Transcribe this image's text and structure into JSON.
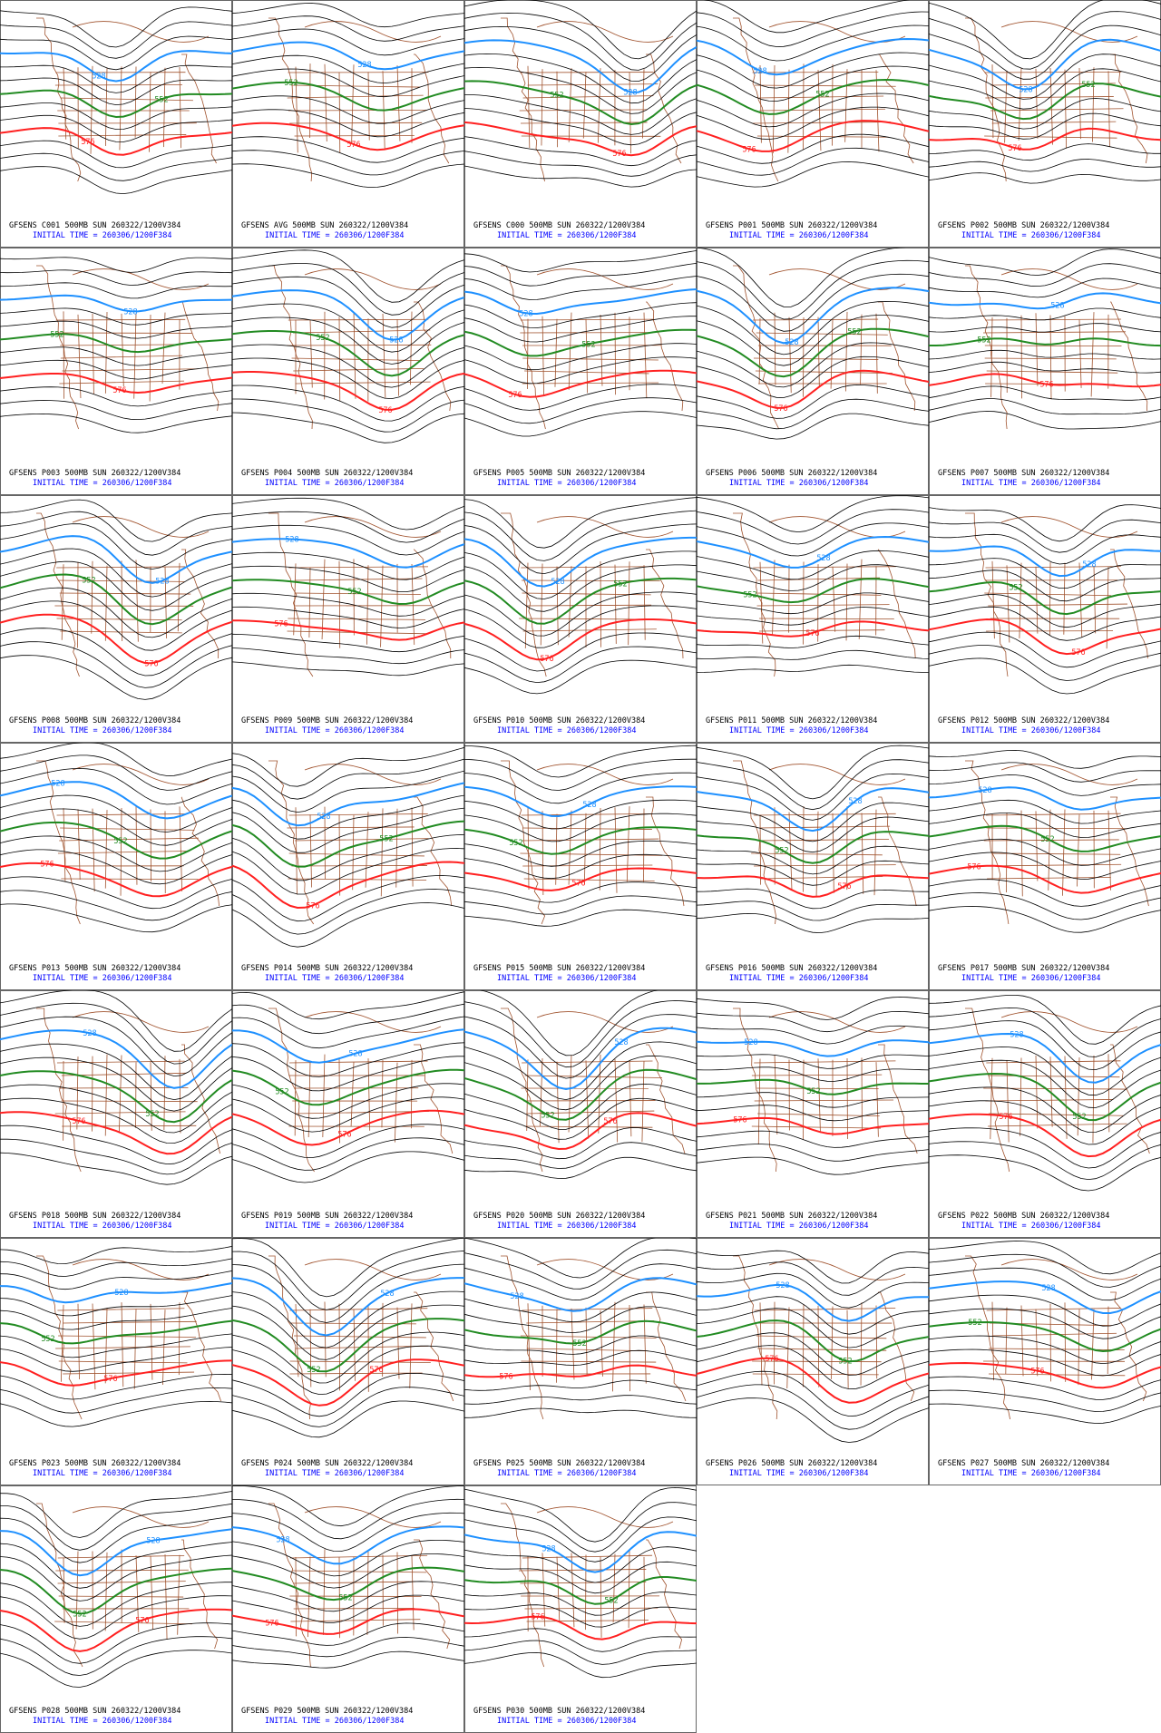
{
  "panels": [
    {
      "title": "GFSENS C001 500MB SUN 260322/1200V384",
      "initial": "INITIAL TIME = 260306/1200F384",
      "contour_labels": [
        "528",
        "552",
        "576"
      ]
    },
    {
      "title": "GFSENS AVG 500MB SUN 260322/1200V384",
      "initial": "INITIAL TIME = 260306/1200F384",
      "contour_labels": [
        "528",
        "552",
        "576"
      ]
    },
    {
      "title": "GFSENS C000 500MB SUN 260322/1200V384",
      "initial": "INITIAL TIME = 260306/1200F384",
      "contour_labels": [
        "528",
        "552",
        "576"
      ]
    },
    {
      "title": "GFSENS P001 500MB SUN 260322/1200V384",
      "initial": "INITIAL TIME = 260306/1200F384",
      "contour_labels": [
        "528",
        "552",
        "576"
      ]
    },
    {
      "title": "GFSENS P002 500MB SUN 260322/1200V384",
      "initial": "INITIAL TIME = 260306/1200F384",
      "contour_labels": [
        "528",
        "552",
        "576"
      ]
    },
    {
      "title": "GFSENS P003 500MB SUN 260322/1200V384",
      "initial": "INITIAL TIME = 260306/1200F384",
      "contour_labels": [
        "528",
        "552",
        "576"
      ]
    },
    {
      "title": "GFSENS P004 500MB SUN 260322/1200V384",
      "initial": "INITIAL TIME = 260306/1200F384",
      "contour_labels": [
        "528",
        "552",
        "576"
      ]
    },
    {
      "title": "GFSENS P005 500MB SUN 260322/1200V384",
      "initial": "INITIAL TIME = 260306/1200F384",
      "contour_labels": [
        "528",
        "552",
        "576"
      ]
    },
    {
      "title": "GFSENS P006 500MB SUN 260322/1200V384",
      "initial": "INITIAL TIME = 260306/1200F384",
      "contour_labels": [
        "528",
        "552",
        "576"
      ]
    },
    {
      "title": "GFSENS P007 500MB SUN 260322/1200V384",
      "initial": "INITIAL TIME = 260306/1200F384",
      "contour_labels": [
        "528",
        "552",
        "576"
      ]
    },
    {
      "title": "GFSENS P008 500MB SUN 260322/1200V384",
      "initial": "INITIAL TIME = 260306/1200F384",
      "contour_labels": [
        "528",
        "552",
        "576"
      ]
    },
    {
      "title": "GFSENS P009 500MB SUN 260322/1200V384",
      "initial": "INITIAL TIME = 260306/1200F384",
      "contour_labels": [
        "528",
        "552",
        "576"
      ]
    },
    {
      "title": "GFSENS P010 500MB SUN 260322/1200V384",
      "initial": "INITIAL TIME = 260306/1200F384",
      "contour_labels": [
        "528",
        "552",
        "576"
      ]
    },
    {
      "title": "GFSENS P011 500MB SUN 260322/1200V384",
      "initial": "INITIAL TIME = 260306/1200F384",
      "contour_labels": [
        "528",
        "552",
        "576"
      ]
    },
    {
      "title": "GFSENS P012 500MB SUN 260322/1200V384",
      "initial": "INITIAL TIME = 260306/1200F384",
      "contour_labels": [
        "528",
        "552",
        "576"
      ]
    },
    {
      "title": "GFSENS P013 500MB SUN 260322/1200V384",
      "initial": "INITIAL TIME = 260306/1200F384",
      "contour_labels": [
        "528",
        "552",
        "576"
      ]
    },
    {
      "title": "GFSENS P014 500MB SUN 260322/1200V384",
      "initial": "INITIAL TIME = 260306/1200F384",
      "contour_labels": [
        "528",
        "552",
        "576"
      ]
    },
    {
      "title": "GFSENS P015 500MB SUN 260322/1200V384",
      "initial": "INITIAL TIME = 260306/1200F384",
      "contour_labels": [
        "528",
        "552",
        "576"
      ]
    },
    {
      "title": "GFSENS P016 500MB SUN 260322/1200V384",
      "initial": "INITIAL TIME = 260306/1200F384",
      "contour_labels": [
        "528",
        "552",
        "576"
      ]
    },
    {
      "title": "GFSENS P017 500MB SUN 260322/1200V384",
      "initial": "INITIAL TIME = 260306/1200F384",
      "contour_labels": [
        "528",
        "552",
        "576"
      ]
    },
    {
      "title": "GFSENS P018 500MB SUN 260322/1200V384",
      "initial": "INITIAL TIME = 260306/1200F384",
      "contour_labels": [
        "528",
        "552",
        "576"
      ]
    },
    {
      "title": "GFSENS P019 500MB SUN 260322/1200V384",
      "initial": "INITIAL TIME = 260306/1200F384",
      "contour_labels": [
        "528",
        "552",
        "576"
      ]
    },
    {
      "title": "GFSENS P020 500MB SUN 260322/1200V384",
      "initial": "INITIAL TIME = 260306/1200F384",
      "contour_labels": [
        "528",
        "552",
        "576"
      ]
    },
    {
      "title": "GFSENS P021 500MB SUN 260322/1200V384",
      "initial": "INITIAL TIME = 260306/1200F384",
      "contour_labels": [
        "528",
        "552",
        "576"
      ]
    },
    {
      "title": "GFSENS P022 500MB SUN 260322/1200V384",
      "initial": "INITIAL TIME = 260306/1200F384",
      "contour_labels": [
        "528",
        "552",
        "576"
      ]
    },
    {
      "title": "GFSENS P023 500MB SUN 260322/1200V384",
      "initial": "INITIAL TIME = 260306/1200F384",
      "contour_labels": [
        "528",
        "552",
        "576"
      ]
    },
    {
      "title": "GFSENS P024 500MB SUN 260322/1200V384",
      "initial": "INITIAL TIME = 260306/1200F384",
      "contour_labels": [
        "528",
        "552",
        "576"
      ]
    },
    {
      "title": "GFSENS P025 500MB SUN 260322/1200V384",
      "initial": "INITIAL TIME = 260306/1200F384",
      "contour_labels": [
        "528",
        "552",
        "576"
      ]
    },
    {
      "title": "GFSENS P026 500MB SUN 260322/1200V384",
      "initial": "INITIAL TIME = 260306/1200F384",
      "contour_labels": [
        "528",
        "552",
        "576"
      ]
    },
    {
      "title": "GFSENS P027 500MB SUN 260322/1200V384",
      "initial": "INITIAL TIME = 260306/1200F384",
      "contour_labels": [
        "528",
        "552",
        "576"
      ]
    },
    {
      "title": "GFSENS P028 500MB SUN 260322/1200V384",
      "initial": "INITIAL TIME = 260306/1200F384",
      "contour_labels": [
        "528",
        "552",
        "576"
      ]
    },
    {
      "title": "GFSENS P029 500MB SUN 260322/1200V384",
      "initial": "INITIAL TIME = 260306/1200F384",
      "contour_labels": [
        "528",
        "552",
        "576"
      ]
    },
    {
      "title": "GFSENS P030 500MB SUN 260322/1200V384",
      "initial": "INITIAL TIME = 260306/1200F384",
      "contour_labels": [
        "528",
        "552",
        "576"
      ]
    }
  ]
}
